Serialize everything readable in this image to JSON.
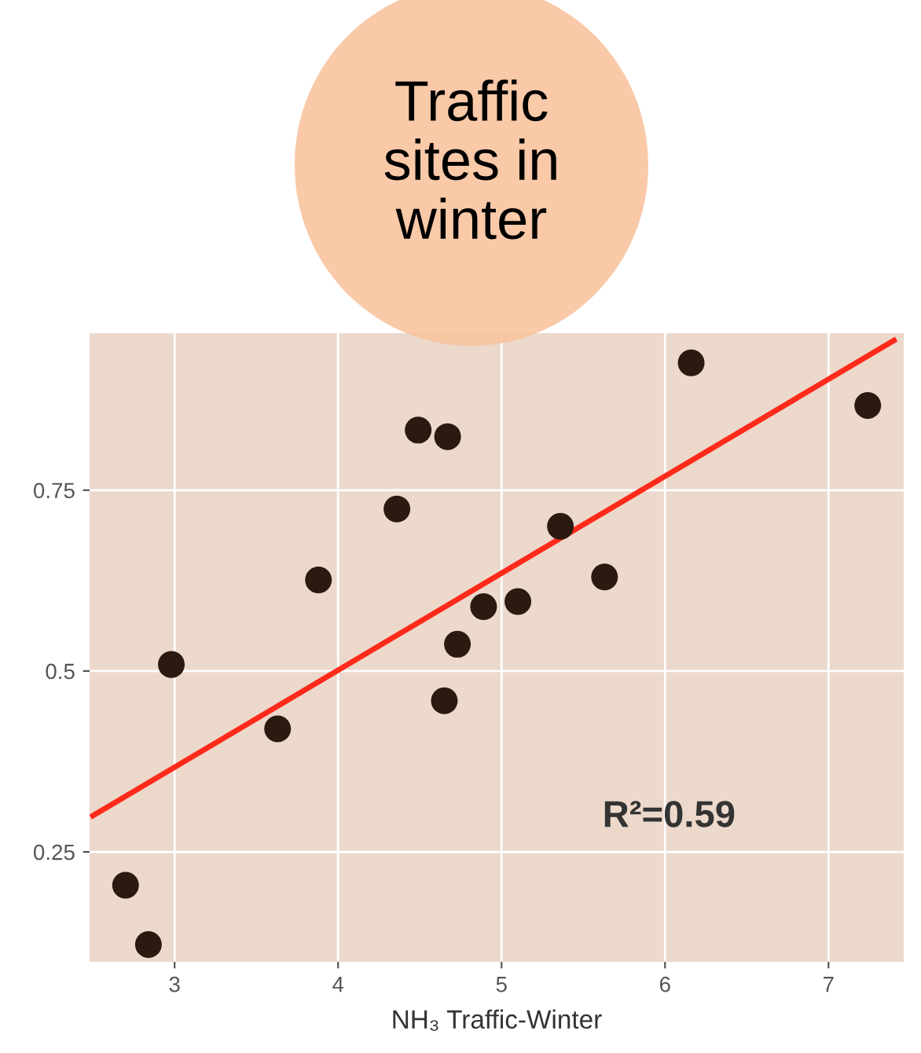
{
  "chart_data": {
    "type": "scatter",
    "title": "Traffic sites in winter",
    "xlabel": "NH₃ Traffic-Winter",
    "xlim": [
      2.48,
      7.46
    ],
    "ylim": [
      0.098,
      0.967
    ],
    "xticks": [
      3,
      4,
      5,
      6,
      7
    ],
    "yticks": [
      0.25,
      0.5,
      0.75
    ],
    "grid": true,
    "series": [
      {
        "marker": "circle",
        "color": "#2b1a10",
        "x": [
          2.7,
          2.84,
          2.98,
          3.63,
          3.88,
          4.36,
          4.49,
          4.67,
          4.65,
          4.73,
          4.89,
          5.1,
          5.36,
          5.63,
          6.16,
          7.24
        ],
        "values": [
          0.204,
          0.122,
          0.509,
          0.42,
          0.626,
          0.724,
          0.833,
          0.824,
          0.459,
          0.537,
          0.589,
          0.596,
          0.7,
          0.63,
          0.926,
          0.867
        ]
      },
      {
        "type": "line",
        "marker": "none",
        "color": "#ff2a1a",
        "x": [
          2.5,
          7.4
        ],
        "values": [
          0.3,
          0.957
        ]
      }
    ],
    "annotations": [
      "R²=0.59"
    ]
  }
}
